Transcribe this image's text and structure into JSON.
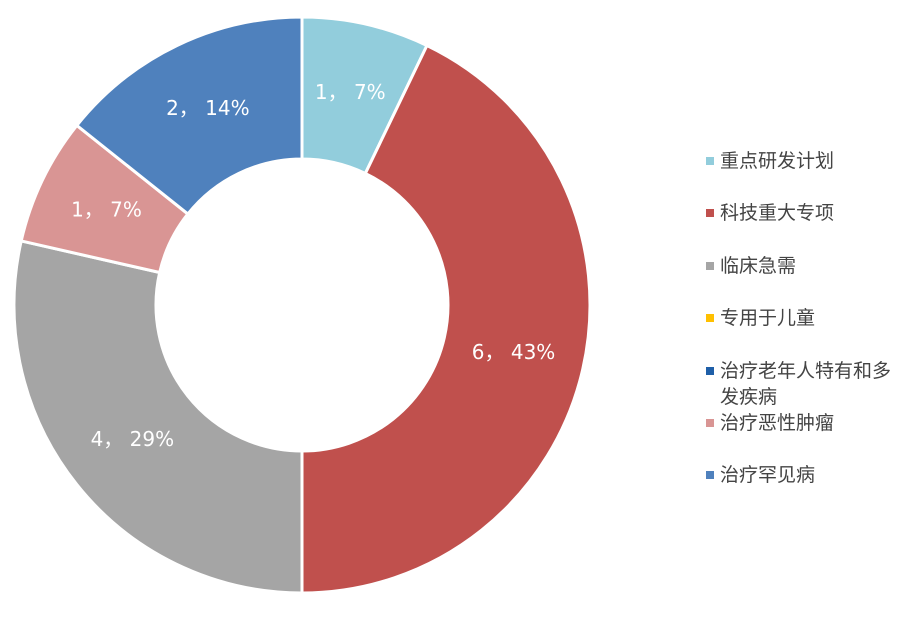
{
  "chart_data": {
    "type": "pie",
    "variant": "donut",
    "legend_position": "right",
    "slices": [
      {
        "name": "重点研发计划",
        "value": 1,
        "percent": "7%",
        "label": "1， 7%",
        "color": "#92CDDC"
      },
      {
        "name": "科技重大专项",
        "value": 6,
        "percent": "43%",
        "label": "6， 43%",
        "color": "#C0504D"
      },
      {
        "name": "临床急需",
        "value": 4,
        "percent": "29%",
        "label": "4， 29%",
        "color": "#A5A5A5"
      },
      {
        "name": "专用于儿童",
        "value": 0,
        "percent": "0%",
        "label": "",
        "color": "#FFC000"
      },
      {
        "name": "治疗老年人特有和多发疾病",
        "value": 0,
        "percent": "0%",
        "label": "",
        "color": "#1F5FA8"
      },
      {
        "name": "治疗恶性肿瘤",
        "value": 1,
        "percent": "7%",
        "label": "1， 7%",
        "color": "#D99594"
      },
      {
        "name": "治疗罕见病",
        "value": 2,
        "percent": "14%",
        "label": "2， 14%",
        "color": "#4F81BD"
      }
    ]
  }
}
